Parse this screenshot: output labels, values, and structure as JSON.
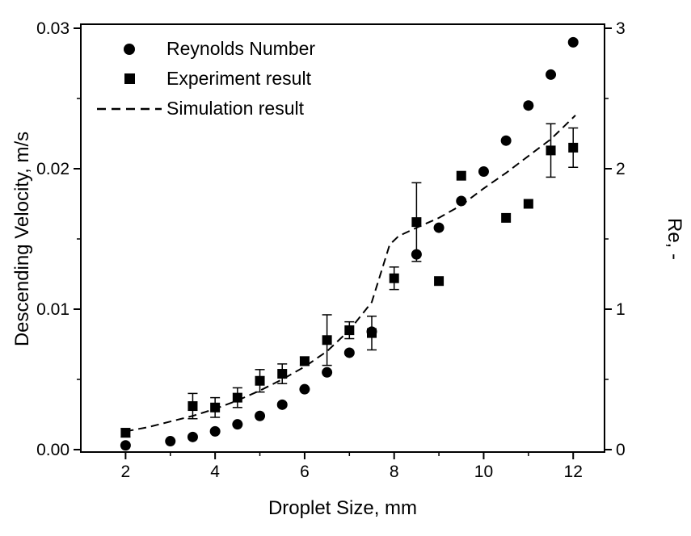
{
  "chart_data": {
    "type": "scatter",
    "title": "",
    "xlabel": "Droplet Size, mm",
    "ylabel_left": "Descending Velocity, m/s",
    "ylabel_right": "Re, -",
    "xlim": [
      1,
      12.7
    ],
    "ylim_left": [
      0,
      0.03
    ],
    "ylim_right": [
      0,
      3
    ],
    "grid": false,
    "legend_position": "top-left-inside",
    "x_ticks": [
      "2",
      "4",
      "6",
      "8",
      "10",
      "12"
    ],
    "x_tick_values": [
      2,
      4,
      6,
      8,
      10,
      12
    ],
    "x_minor_tick_values": [
      3,
      5,
      7,
      9,
      11
    ],
    "y_left_ticks": [
      "0.00",
      "0.01",
      "0.02",
      "0.03"
    ],
    "y_left_tick_values": [
      0,
      0.01,
      0.02,
      0.03
    ],
    "y_left_minor_tick_values": [
      0.005,
      0.015,
      0.025
    ],
    "y_right_ticks": [
      "0",
      "1",
      "2",
      "3"
    ],
    "y_right_tick_values": [
      0,
      1,
      2,
      3
    ],
    "y_right_minor_tick_values": [
      0.5,
      1.5,
      2.5
    ],
    "series": [
      {
        "name": "Reynolds Number",
        "type": "scatter",
        "marker": "circle",
        "axis": "right",
        "x": [
          2,
          3,
          3.5,
          4,
          4.5,
          5,
          5.5,
          6,
          6.5,
          7,
          7.5,
          8.5,
          9,
          9.5,
          10,
          10.5,
          11,
          11.5,
          12
        ],
        "y": [
          0.03,
          0.06,
          0.09,
          0.13,
          0.18,
          0.24,
          0.32,
          0.43,
          0.55,
          0.69,
          0.84,
          1.39,
          1.58,
          1.77,
          1.98,
          2.2,
          2.45,
          2.67,
          2.9
        ]
      },
      {
        "name": "Experiment result",
        "type": "scatter",
        "marker": "square",
        "axis": "left",
        "x": [
          2,
          3.5,
          4,
          4.5,
          5,
          5.5,
          6,
          6.5,
          7,
          7.5,
          8,
          8.5,
          9,
          9.5,
          10.5,
          11,
          11.5,
          12
        ],
        "y": [
          0.0012,
          0.0031,
          0.003,
          0.0037,
          0.0049,
          0.0054,
          0.0063,
          0.0078,
          0.0085,
          0.0083,
          0.0122,
          0.0162,
          0.012,
          0.0195,
          0.0165,
          0.0175,
          0.0213,
          0.0215
        ],
        "yerr": [
          0.0003,
          0.0009,
          0.0007,
          0.0007,
          0.0008,
          0.0007,
          0.0003,
          0.0018,
          0.0006,
          0.0012,
          0.0008,
          0.0028,
          0,
          0,
          0,
          0,
          0.0019,
          0.0014
        ]
      },
      {
        "name": "Simulation result",
        "type": "line",
        "line_style": "dashed",
        "axis": "left",
        "x": [
          2,
          2.5,
          3,
          3.5,
          4,
          4.5,
          5,
          5.5,
          6,
          6.5,
          7,
          7.5,
          7.9,
          8.1,
          8.5,
          9,
          9.5,
          10,
          10.5,
          11,
          11.5,
          12.05
        ],
        "y": [
          0.0013,
          0.0016,
          0.002,
          0.0024,
          0.0029,
          0.0035,
          0.0042,
          0.005,
          0.0059,
          0.007,
          0.0085,
          0.0105,
          0.0146,
          0.0152,
          0.0158,
          0.0165,
          0.0174,
          0.0186,
          0.0197,
          0.0209,
          0.0221,
          0.0238
        ]
      }
    ]
  }
}
